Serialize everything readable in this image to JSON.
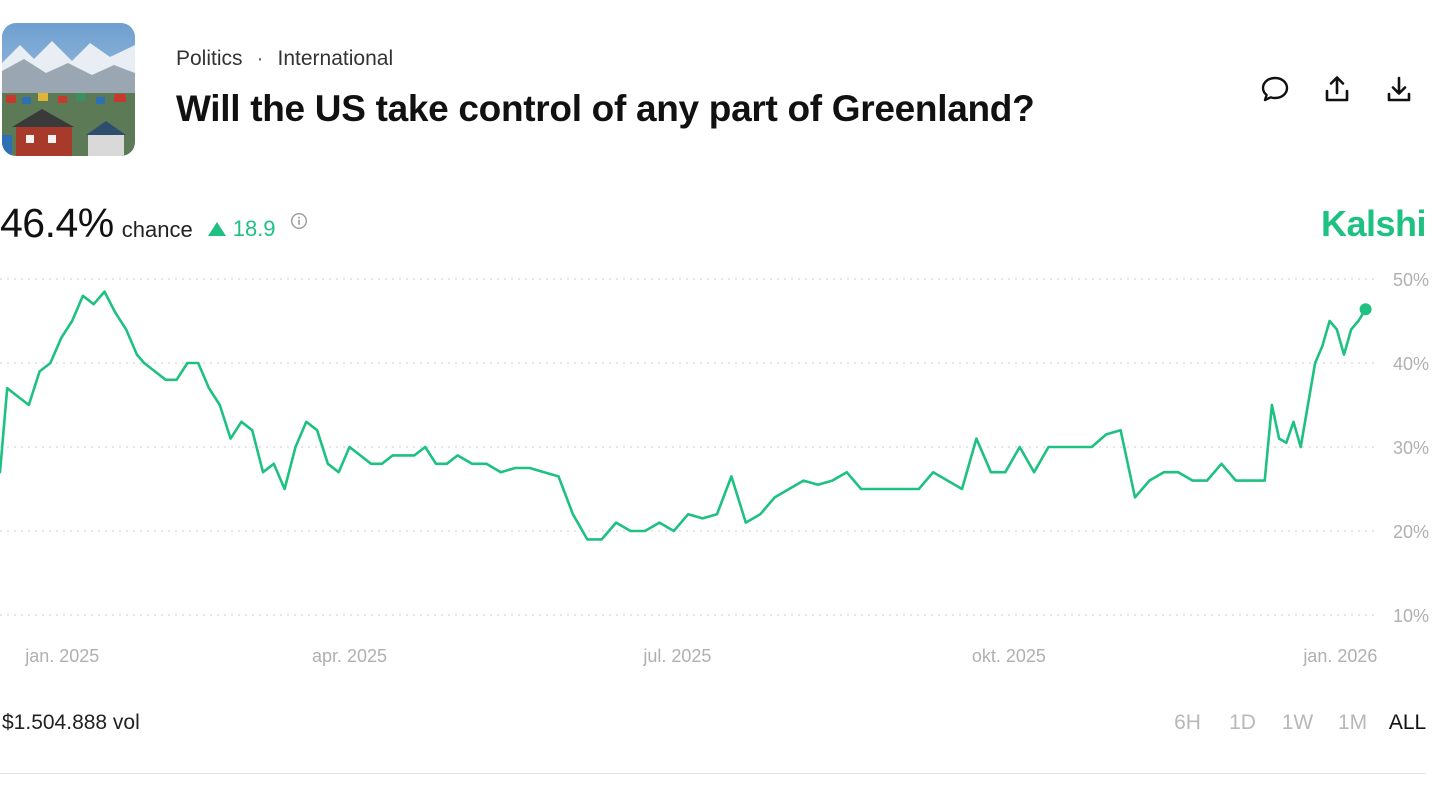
{
  "header": {
    "breadcrumb": [
      "Politics",
      "International"
    ],
    "title": "Will the US take control of any part of Greenland?"
  },
  "actions": [
    "comment-icon",
    "share-icon",
    "download-icon"
  ],
  "stat": {
    "percent": "46.4%",
    "chance_label": "chance",
    "delta": "18.9"
  },
  "brand": "Kalshi",
  "colors": {
    "accent": "#1ec181",
    "grid": "#d8d8d8",
    "axis_text": "#b0b0b0"
  },
  "chart_data": {
    "type": "line",
    "x_ticks": [
      "jan. 2025",
      "apr. 2025",
      "jul. 2025",
      "okt. 2025",
      "jan. 2026"
    ],
    "y_ticks": [
      "50%",
      "40%",
      "30%",
      "20%",
      "10%"
    ],
    "ylim": [
      10,
      50
    ],
    "xlim": [
      "2024-12-25",
      "2026-01-12"
    ],
    "grid": true,
    "series": [
      {
        "x": [
          "2024-12-25",
          "2024-12-27",
          "2024-12-30",
          "2025-01-02",
          "2025-01-05",
          "2025-01-08",
          "2025-01-11",
          "2025-01-14",
          "2025-01-17",
          "2025-01-20",
          "2025-01-23",
          "2025-01-26",
          "2025-01-29",
          "2025-02-01",
          "2025-02-03",
          "2025-02-06",
          "2025-02-09",
          "2025-02-12",
          "2025-02-15",
          "2025-02-18",
          "2025-02-21",
          "2025-02-24",
          "2025-02-27",
          "2025-03-02",
          "2025-03-05",
          "2025-03-08",
          "2025-03-11",
          "2025-03-14",
          "2025-03-17",
          "2025-03-20",
          "2025-03-23",
          "2025-03-26",
          "2025-03-29",
          "2025-04-01",
          "2025-04-04",
          "2025-04-07",
          "2025-04-10",
          "2025-04-13",
          "2025-04-16",
          "2025-04-19",
          "2025-04-22",
          "2025-04-25",
          "2025-04-28",
          "2025-05-01",
          "2025-05-05",
          "2025-05-09",
          "2025-05-13",
          "2025-05-17",
          "2025-05-21",
          "2025-05-25",
          "2025-05-29",
          "2025-06-02",
          "2025-06-06",
          "2025-06-10",
          "2025-06-14",
          "2025-06-18",
          "2025-06-22",
          "2025-06-26",
          "2025-06-30",
          "2025-07-04",
          "2025-07-08",
          "2025-07-12",
          "2025-07-16",
          "2025-07-20",
          "2025-07-24",
          "2025-07-28",
          "2025-08-01",
          "2025-08-05",
          "2025-08-09",
          "2025-08-13",
          "2025-08-17",
          "2025-08-21",
          "2025-08-25",
          "2025-08-29",
          "2025-09-02",
          "2025-09-06",
          "2025-09-10",
          "2025-09-14",
          "2025-09-18",
          "2025-09-22",
          "2025-09-26",
          "2025-09-30",
          "2025-10-04",
          "2025-10-08",
          "2025-10-12",
          "2025-10-16",
          "2025-10-20",
          "2025-10-24",
          "2025-10-28",
          "2025-11-01",
          "2025-11-05",
          "2025-11-09",
          "2025-11-13",
          "2025-11-17",
          "2025-11-21",
          "2025-11-25",
          "2025-11-29",
          "2025-12-03",
          "2025-12-07",
          "2025-12-11",
          "2025-12-13",
          "2025-12-15",
          "2025-12-17",
          "2025-12-19",
          "2025-12-21",
          "2025-12-23",
          "2025-12-25",
          "2025-12-27",
          "2025-12-29",
          "2025-12-31",
          "2026-01-02",
          "2026-01-04",
          "2026-01-06",
          "2026-01-08"
        ],
        "y": [
          27,
          37,
          36,
          35,
          39,
          40,
          43,
          45,
          48,
          47,
          48.5,
          46,
          44,
          41,
          40,
          39,
          38,
          38,
          40,
          40,
          37,
          35,
          31,
          33,
          32,
          27,
          28,
          25,
          30,
          33,
          32,
          28,
          27,
          30,
          29,
          28,
          28,
          29,
          29,
          29,
          30,
          28,
          28,
          29,
          28,
          28,
          27,
          27.5,
          27.5,
          27,
          26.5,
          22,
          19,
          19,
          21,
          20,
          20,
          21,
          20,
          22,
          21.5,
          22,
          26.5,
          21,
          22,
          24,
          25,
          26,
          25.5,
          26,
          27,
          25,
          25,
          25,
          25,
          25,
          27,
          26,
          25,
          31,
          27,
          27,
          30,
          27,
          30,
          30,
          30,
          30,
          31.5,
          32,
          24,
          26,
          27,
          27,
          26,
          26,
          28,
          26,
          26,
          26,
          35,
          31,
          30.5,
          33,
          30,
          35,
          40,
          42,
          45,
          44,
          41,
          44,
          45,
          46.4
        ]
      }
    ]
  },
  "footer": {
    "volume": "$1.504.888 vol",
    "ranges": [
      "6H",
      "1D",
      "1W",
      "1M",
      "ALL"
    ],
    "active_range": "ALL"
  }
}
